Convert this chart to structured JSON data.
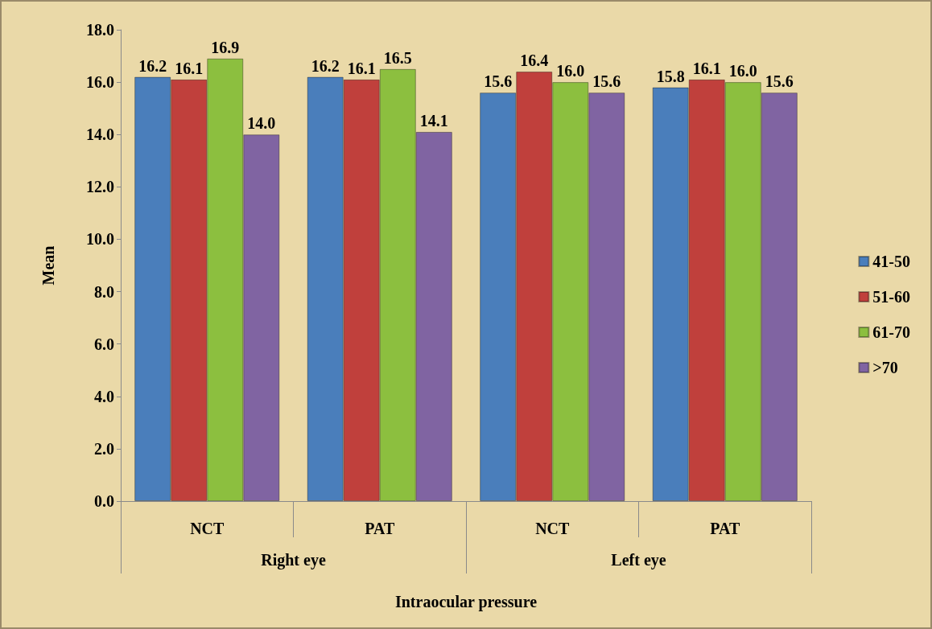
{
  "chart_data": {
    "type": "bar",
    "xlabel": "Intraocular pressure",
    "ylabel": "Mean",
    "categories": [
      "NCT",
      "PAT",
      "NCT",
      "PAT"
    ],
    "annotations": [
      "Right eye",
      "Left eye"
    ],
    "series": [
      {
        "name": "41-50",
        "color": "#4a7ebb",
        "values": [
          16.2,
          16.2,
          15.6,
          15.8
        ],
        "value_labels": [
          "16.2",
          "16.2",
          "15.6",
          "15.8"
        ]
      },
      {
        "name": "51-60",
        "color": "#c0403c",
        "values": [
          16.1,
          16.1,
          16.4,
          16.1
        ],
        "value_labels": [
          "16.1",
          "16.1",
          "16.4",
          "16.1"
        ]
      },
      {
        "name": "61-70",
        "color": "#8cbf3f",
        "values": [
          16.9,
          16.5,
          16.0,
          16.0
        ],
        "value_labels": [
          "16.9",
          "16.5",
          "16.0",
          "16.0"
        ]
      },
      {
        "name": ">70",
        "color": "#8064a2",
        "values": [
          14.0,
          14.1,
          15.6,
          15.6
        ],
        "value_labels": [
          "14.0",
          "14.1",
          "15.6",
          "15.6"
        ]
      }
    ],
    "ylim": [
      0,
      18
    ],
    "yticks": [
      {
        "value": 0,
        "label": "0.0"
      },
      {
        "value": 2,
        "label": "2.0"
      },
      {
        "value": 4,
        "label": "4.0"
      },
      {
        "value": 6,
        "label": "6.0"
      },
      {
        "value": 8,
        "label": "8.0"
      },
      {
        "value": 10,
        "label": "10.0"
      },
      {
        "value": 12,
        "label": "12.0"
      },
      {
        "value": 14,
        "label": "14.0"
      },
      {
        "value": 16,
        "label": "16.0"
      },
      {
        "value": 18,
        "label": "18.0"
      }
    ],
    "grid": false,
    "legend": "right"
  }
}
